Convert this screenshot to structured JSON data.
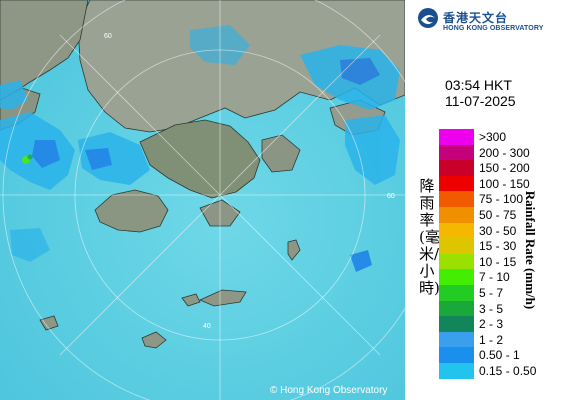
{
  "header": {
    "logo_zh": "香港天文台",
    "logo_en": "HONG KONG OBSERVATORY"
  },
  "timestamp": {
    "time": "03:54 HKT",
    "date": "11-07-2025"
  },
  "map": {
    "range_rings_km": [
      "40",
      "60"
    ],
    "copyright": "© Hong Kong Observatory"
  },
  "legend": {
    "title_zh": "降雨率(毫米/小時)",
    "title_en": "Rainfall Rate (mm/h)",
    "categories": [
      {
        "label": ">300",
        "color": "#ee00ee"
      },
      {
        "label": "200 - 300",
        "color": "#c4007a"
      },
      {
        "label": "150 - 200",
        "color": "#c8002a"
      },
      {
        "label": "100 - 150",
        "color": "#ee0000"
      },
      {
        "label": "75 - 100",
        "color": "#f25a00"
      },
      {
        "label": "50 - 75",
        "color": "#f08f00"
      },
      {
        "label": "30 - 50",
        "color": "#f5b800"
      },
      {
        "label": "15 - 30",
        "color": "#ddc600"
      },
      {
        "label": "10 - 15",
        "color": "#9ae000"
      },
      {
        "label": "7 - 10",
        "color": "#44ee00"
      },
      {
        "label": "5 - 7",
        "color": "#22cc22"
      },
      {
        "label": "3 - 5",
        "color": "#1aa83a"
      },
      {
        "label": "2 - 3",
        "color": "#12855a"
      },
      {
        "label": "1 - 2",
        "color": "#3aa0ee"
      },
      {
        "label": "0.50 - 1",
        "color": "#1a8fee"
      },
      {
        "label": "0.15 - 0.50",
        "color": "#22c4ee"
      }
    ]
  },
  "colors": {
    "sea": "#5ed0e2",
    "land": "#8f9a8a",
    "radar_light": "#2ab3ea",
    "radar_medium": "#1c7fe8"
  }
}
